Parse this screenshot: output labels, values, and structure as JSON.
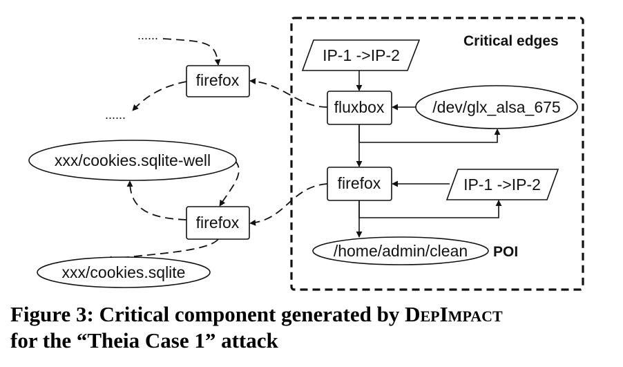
{
  "diagram": {
    "region_label": "Critical edges",
    "poi_label": "POI",
    "nodes": {
      "ip_top": "IP-1 ->IP-2",
      "fluxbox": "fluxbox",
      "glx": "/dev/glx_alsa_675",
      "firefox_mid": "firefox",
      "ip_mid": "IP-1 ->IP-2",
      "clean": "/home/admin/clean",
      "firefox_upper_left": "firefox",
      "cookies_well": "xxx/cookies.sqlite-well",
      "firefox_lower_left": "firefox",
      "cookies": "xxx/cookies.sqlite"
    },
    "ellipsis_top": "......",
    "ellipsis_left": "......"
  },
  "caption": {
    "line1_prefix": "Figure 3: Critical component generated by ",
    "name_part1": "Dep",
    "name_part2": "Impact",
    "line2": "for the “Theia Case 1” attack"
  }
}
